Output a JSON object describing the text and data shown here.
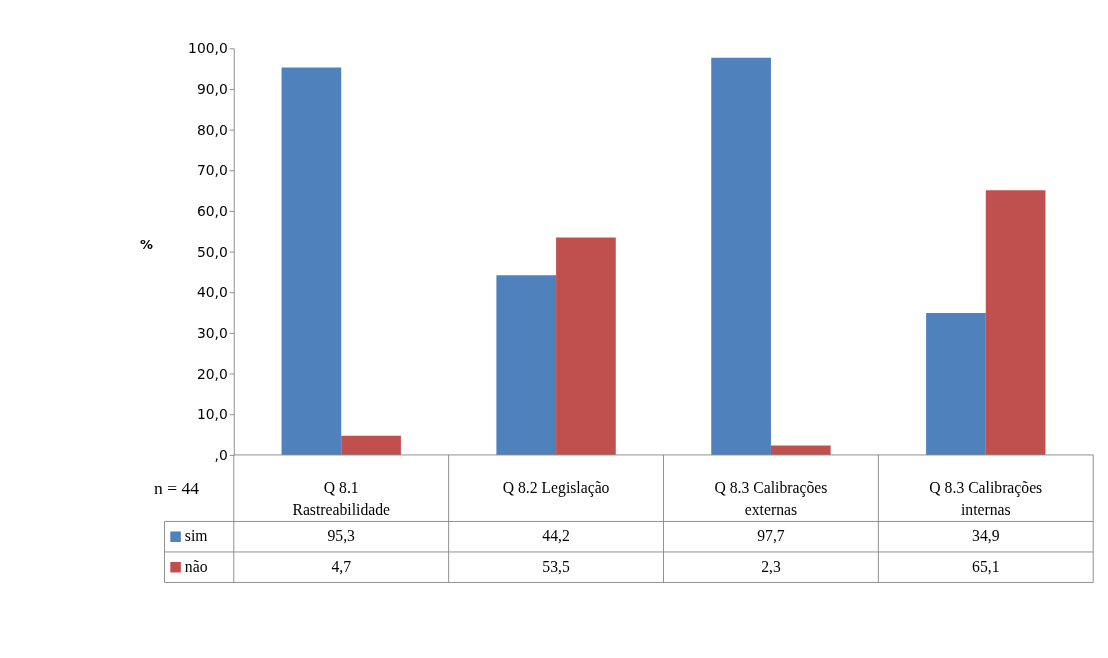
{
  "chart_data": {
    "type": "bar",
    "ylabel": "%",
    "categories": [
      "Q 8.1 Rastreabilidade",
      "Q 8.2 Legislação",
      "Q 8.3 Calibrações externas",
      "Q 8.3 Calibrações internas"
    ],
    "series": [
      {
        "name": "sim",
        "color": "#4f81bd",
        "values": [
          95.3,
          44.2,
          97.7,
          34.9
        ],
        "value_labels": [
          "95,3",
          "44,2",
          "97,7",
          "34,9"
        ]
      },
      {
        "name": "não",
        "color": "#c0504d",
        "values": [
          4.7,
          53.5,
          2.3,
          65.1
        ],
        "value_labels": [
          "4,7",
          "53,5",
          "2,3",
          "65,1"
        ]
      }
    ],
    "ylim": [
      0,
      100
    ],
    "yticks": [
      {
        "value": 0,
        "label": ",0"
      },
      {
        "value": 10,
        "label": "10,0"
      },
      {
        "value": 20,
        "label": "20,0"
      },
      {
        "value": 30,
        "label": "30,0"
      },
      {
        "value": 40,
        "label": "40,0"
      },
      {
        "value": 50,
        "label": "50,0"
      },
      {
        "value": 60,
        "label": "60,0"
      },
      {
        "value": 70,
        "label": "70,0"
      },
      {
        "value": 80,
        "label": "80,0"
      },
      {
        "value": 90,
        "label": "90,0"
      },
      {
        "value": 100,
        "label": "100,0"
      }
    ],
    "legend": "bottom",
    "annotations": [
      "n = 44"
    ]
  }
}
